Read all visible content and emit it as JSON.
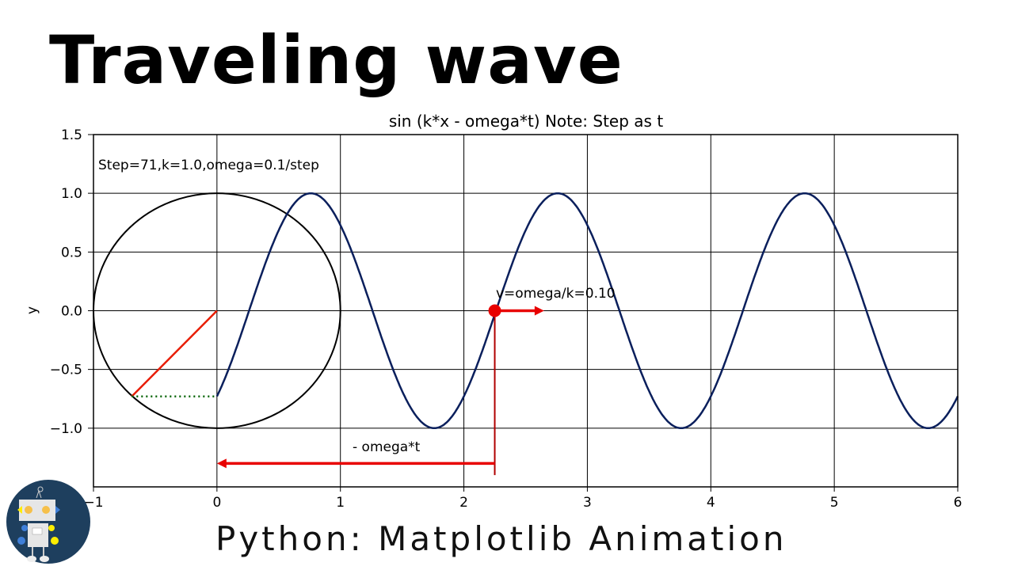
{
  "headline": "Traveling wave",
  "overlay_caption": "Python: Matplotlib Animation",
  "colors": {
    "wave": "#0a1f5c",
    "radius": "#e81c00",
    "arrow": "#e80000",
    "marker_line": "#b00000",
    "dotted": "#006400",
    "logo_bg": "#1e3f5e"
  },
  "chart_data": {
    "type": "line",
    "title": "sin (k*x - omega*t) Note: Step as t",
    "xlabel": "",
    "ylabel": "y",
    "xlim": [
      -1,
      6
    ],
    "ylim": [
      -1.5,
      1.5
    ],
    "xticks": [
      "−1",
      "0",
      "1",
      "2",
      "3",
      "4",
      "5",
      "6"
    ],
    "yticks": [
      "−1.0",
      "−0.5",
      "0.0",
      "0.5",
      "1.0",
      "1.5"
    ],
    "ytick_values": [
      -1.0,
      -0.5,
      0.0,
      0.5,
      1.0,
      1.5
    ],
    "xtick_values": [
      -1,
      0,
      1,
      2,
      3,
      4,
      5,
      6
    ],
    "grid": true,
    "params": {
      "step": 71,
      "k": 1.0,
      "omega": 0.1
    },
    "series": [
      {
        "function": "sin(pi*x - 7.1)",
        "x_range": [
          0,
          6
        ]
      }
    ],
    "circle": {
      "center": [
        0,
        0
      ],
      "radius": 1,
      "point": [
        -0.69,
        -0.73
      ]
    },
    "marker_point": [
      2.25,
      0
    ],
    "velocity_arrow": {
      "from": [
        2.25,
        0
      ],
      "to": [
        2.65,
        0
      ]
    },
    "phase_arrow": {
      "from": [
        2.25,
        -1.3
      ],
      "to": [
        0,
        -1.3
      ]
    },
    "annotations": {
      "params_text": "Step=71,k=1.0,omega=0.1/step",
      "velocity_text": "v=omega/k=0.10",
      "phase_text": "- omega*t"
    }
  }
}
